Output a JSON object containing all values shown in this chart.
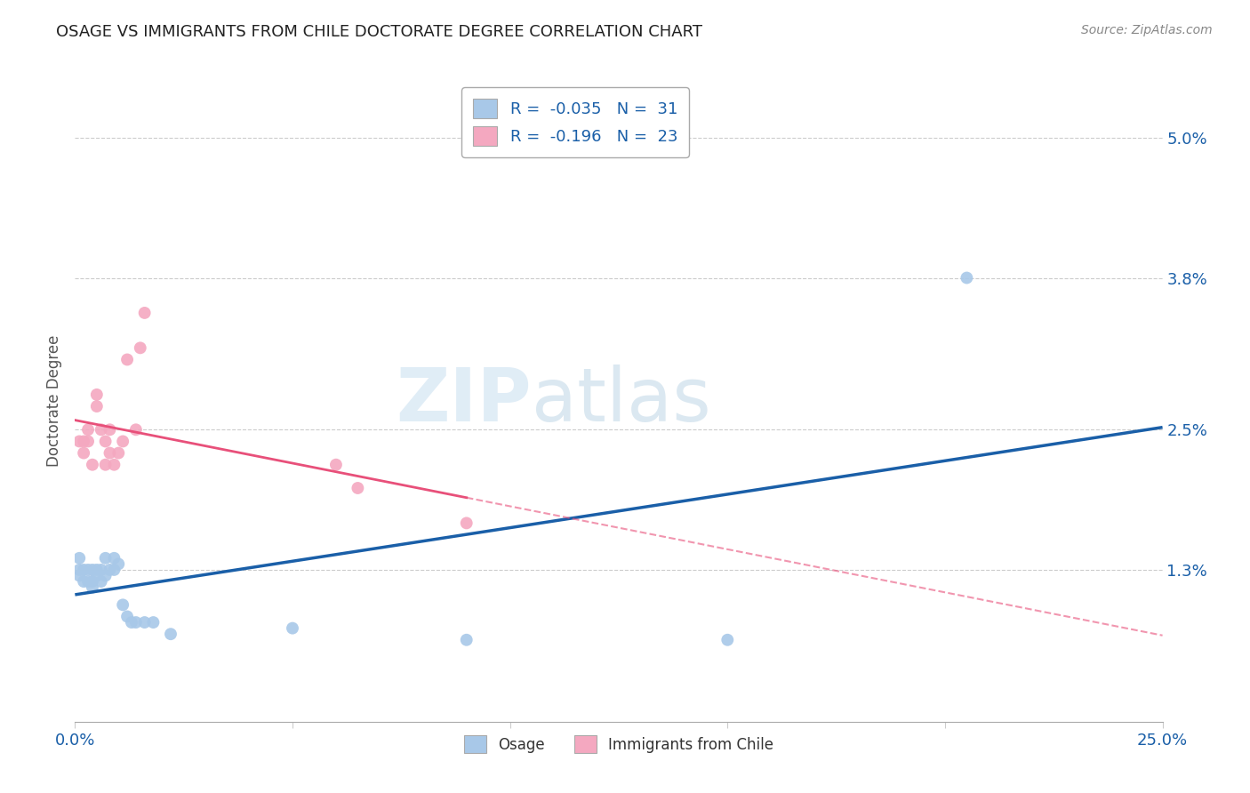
{
  "title": "OSAGE VS IMMIGRANTS FROM CHILE DOCTORATE DEGREE CORRELATION CHART",
  "source": "Source: ZipAtlas.com",
  "ylabel": "Doctorate Degree",
  "xlim": [
    0.0,
    0.25
  ],
  "ylim": [
    0.0,
    0.055
  ],
  "xticks": [
    0.0,
    0.05,
    0.1,
    0.15,
    0.2,
    0.25
  ],
  "xticklabels": [
    "0.0%",
    "",
    "",
    "",
    "",
    "25.0%"
  ],
  "yticks_right": [
    0.013,
    0.025,
    0.038,
    0.05
  ],
  "yticklabels_right": [
    "1.3%",
    "2.5%",
    "3.8%",
    "5.0%"
  ],
  "osage_color": "#a8c8e8",
  "chile_color": "#f4a8c0",
  "osage_line_color": "#1a5fa8",
  "chile_line_color": "#e8507a",
  "background_color": "#ffffff",
  "grid_color": "#cccccc",
  "legend_R_osage": "-0.035",
  "legend_N_osage": "31",
  "legend_R_chile": "-0.196",
  "legend_N_chile": "23",
  "watermark_zip": "ZIP",
  "watermark_atlas": "atlas",
  "osage_x": [
    0.001,
    0.001,
    0.001,
    0.002,
    0.002,
    0.003,
    0.003,
    0.004,
    0.004,
    0.004,
    0.005,
    0.005,
    0.006,
    0.006,
    0.007,
    0.007,
    0.008,
    0.009,
    0.009,
    0.01,
    0.011,
    0.012,
    0.013,
    0.014,
    0.016,
    0.018,
    0.022,
    0.05,
    0.09,
    0.15,
    0.205
  ],
  "osage_y": [
    0.013,
    0.014,
    0.0125,
    0.012,
    0.013,
    0.012,
    0.013,
    0.012,
    0.0115,
    0.013,
    0.0125,
    0.013,
    0.012,
    0.013,
    0.0125,
    0.014,
    0.013,
    0.013,
    0.014,
    0.0135,
    0.01,
    0.009,
    0.0085,
    0.0085,
    0.0085,
    0.0085,
    0.0075,
    0.008,
    0.007,
    0.007,
    0.038
  ],
  "chile_x": [
    0.001,
    0.002,
    0.002,
    0.003,
    0.003,
    0.004,
    0.005,
    0.005,
    0.006,
    0.007,
    0.007,
    0.008,
    0.008,
    0.009,
    0.01,
    0.011,
    0.012,
    0.014,
    0.015,
    0.016,
    0.06,
    0.065,
    0.09
  ],
  "chile_y": [
    0.024,
    0.024,
    0.023,
    0.025,
    0.024,
    0.022,
    0.027,
    0.028,
    0.025,
    0.022,
    0.024,
    0.023,
    0.025,
    0.022,
    0.023,
    0.024,
    0.031,
    0.025,
    0.032,
    0.035,
    0.022,
    0.02,
    0.017
  ]
}
